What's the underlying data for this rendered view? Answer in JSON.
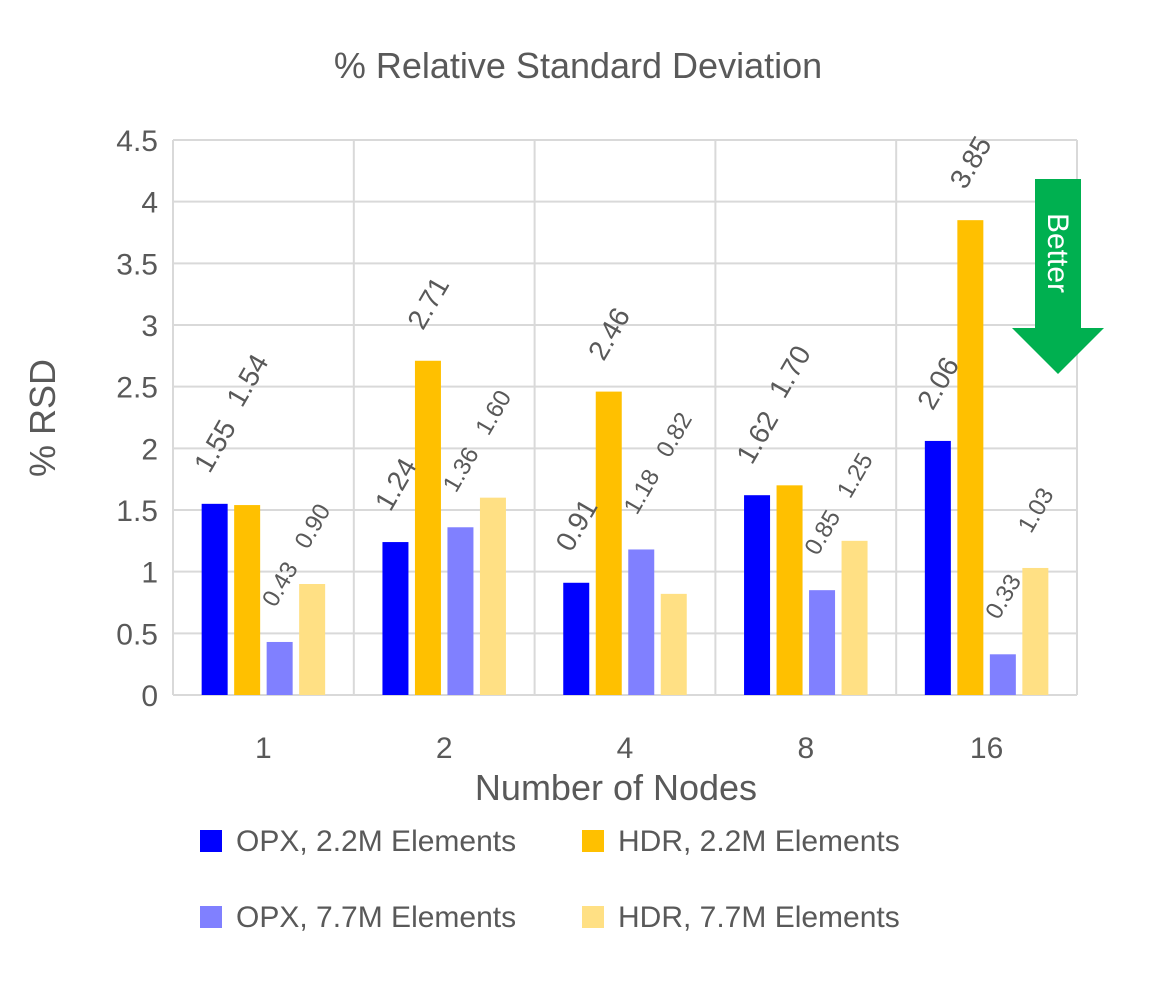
{
  "chart_data": {
    "type": "bar",
    "title": "% Relative Standard Deviation",
    "xlabel": "Number of Nodes",
    "ylabel": "% RSD",
    "ylim": [
      0,
      4.5
    ],
    "yticks": [
      "0",
      "0.5",
      "1",
      "1.5",
      "2",
      "2.5",
      "3",
      "3.5",
      "4",
      "4.5"
    ],
    "grid": true,
    "legend_position": "bottom",
    "categories": [
      "1",
      "2",
      "4",
      "8",
      "16"
    ],
    "series": [
      {
        "name": "OPX, 2.2M Elements",
        "color": "#0000FF",
        "values": [
          1.55,
          1.24,
          0.91,
          1.62,
          2.06
        ],
        "labels": [
          "1.55",
          "1.24",
          "0.91",
          "1.62",
          "2.06"
        ]
      },
      {
        "name": "HDR, 2.2M Elements",
        "color": "#FFC000",
        "values": [
          1.54,
          2.71,
          2.46,
          1.7,
          3.85
        ],
        "labels": [
          "1.54",
          "2.71",
          "2.46",
          "1.70",
          "3.85"
        ]
      },
      {
        "name": "OPX, 7.7M Elements",
        "color": "#8080FF",
        "values": [
          0.43,
          1.36,
          1.18,
          0.85,
          0.33
        ],
        "labels": [
          "0.43",
          "1.36",
          "1.18",
          "0.85",
          "0.33"
        ]
      },
      {
        "name": "HDR, 7.7M Elements",
        "color": "#FFE084",
        "values": [
          0.9,
          1.6,
          0.82,
          1.25,
          1.03
        ],
        "labels": [
          "0.90",
          "1.60",
          "0.82",
          "1.25",
          "1.03"
        ]
      }
    ],
    "annotation": {
      "text": "Better",
      "color": "#00B050",
      "icon": "down-arrow-icon"
    }
  }
}
